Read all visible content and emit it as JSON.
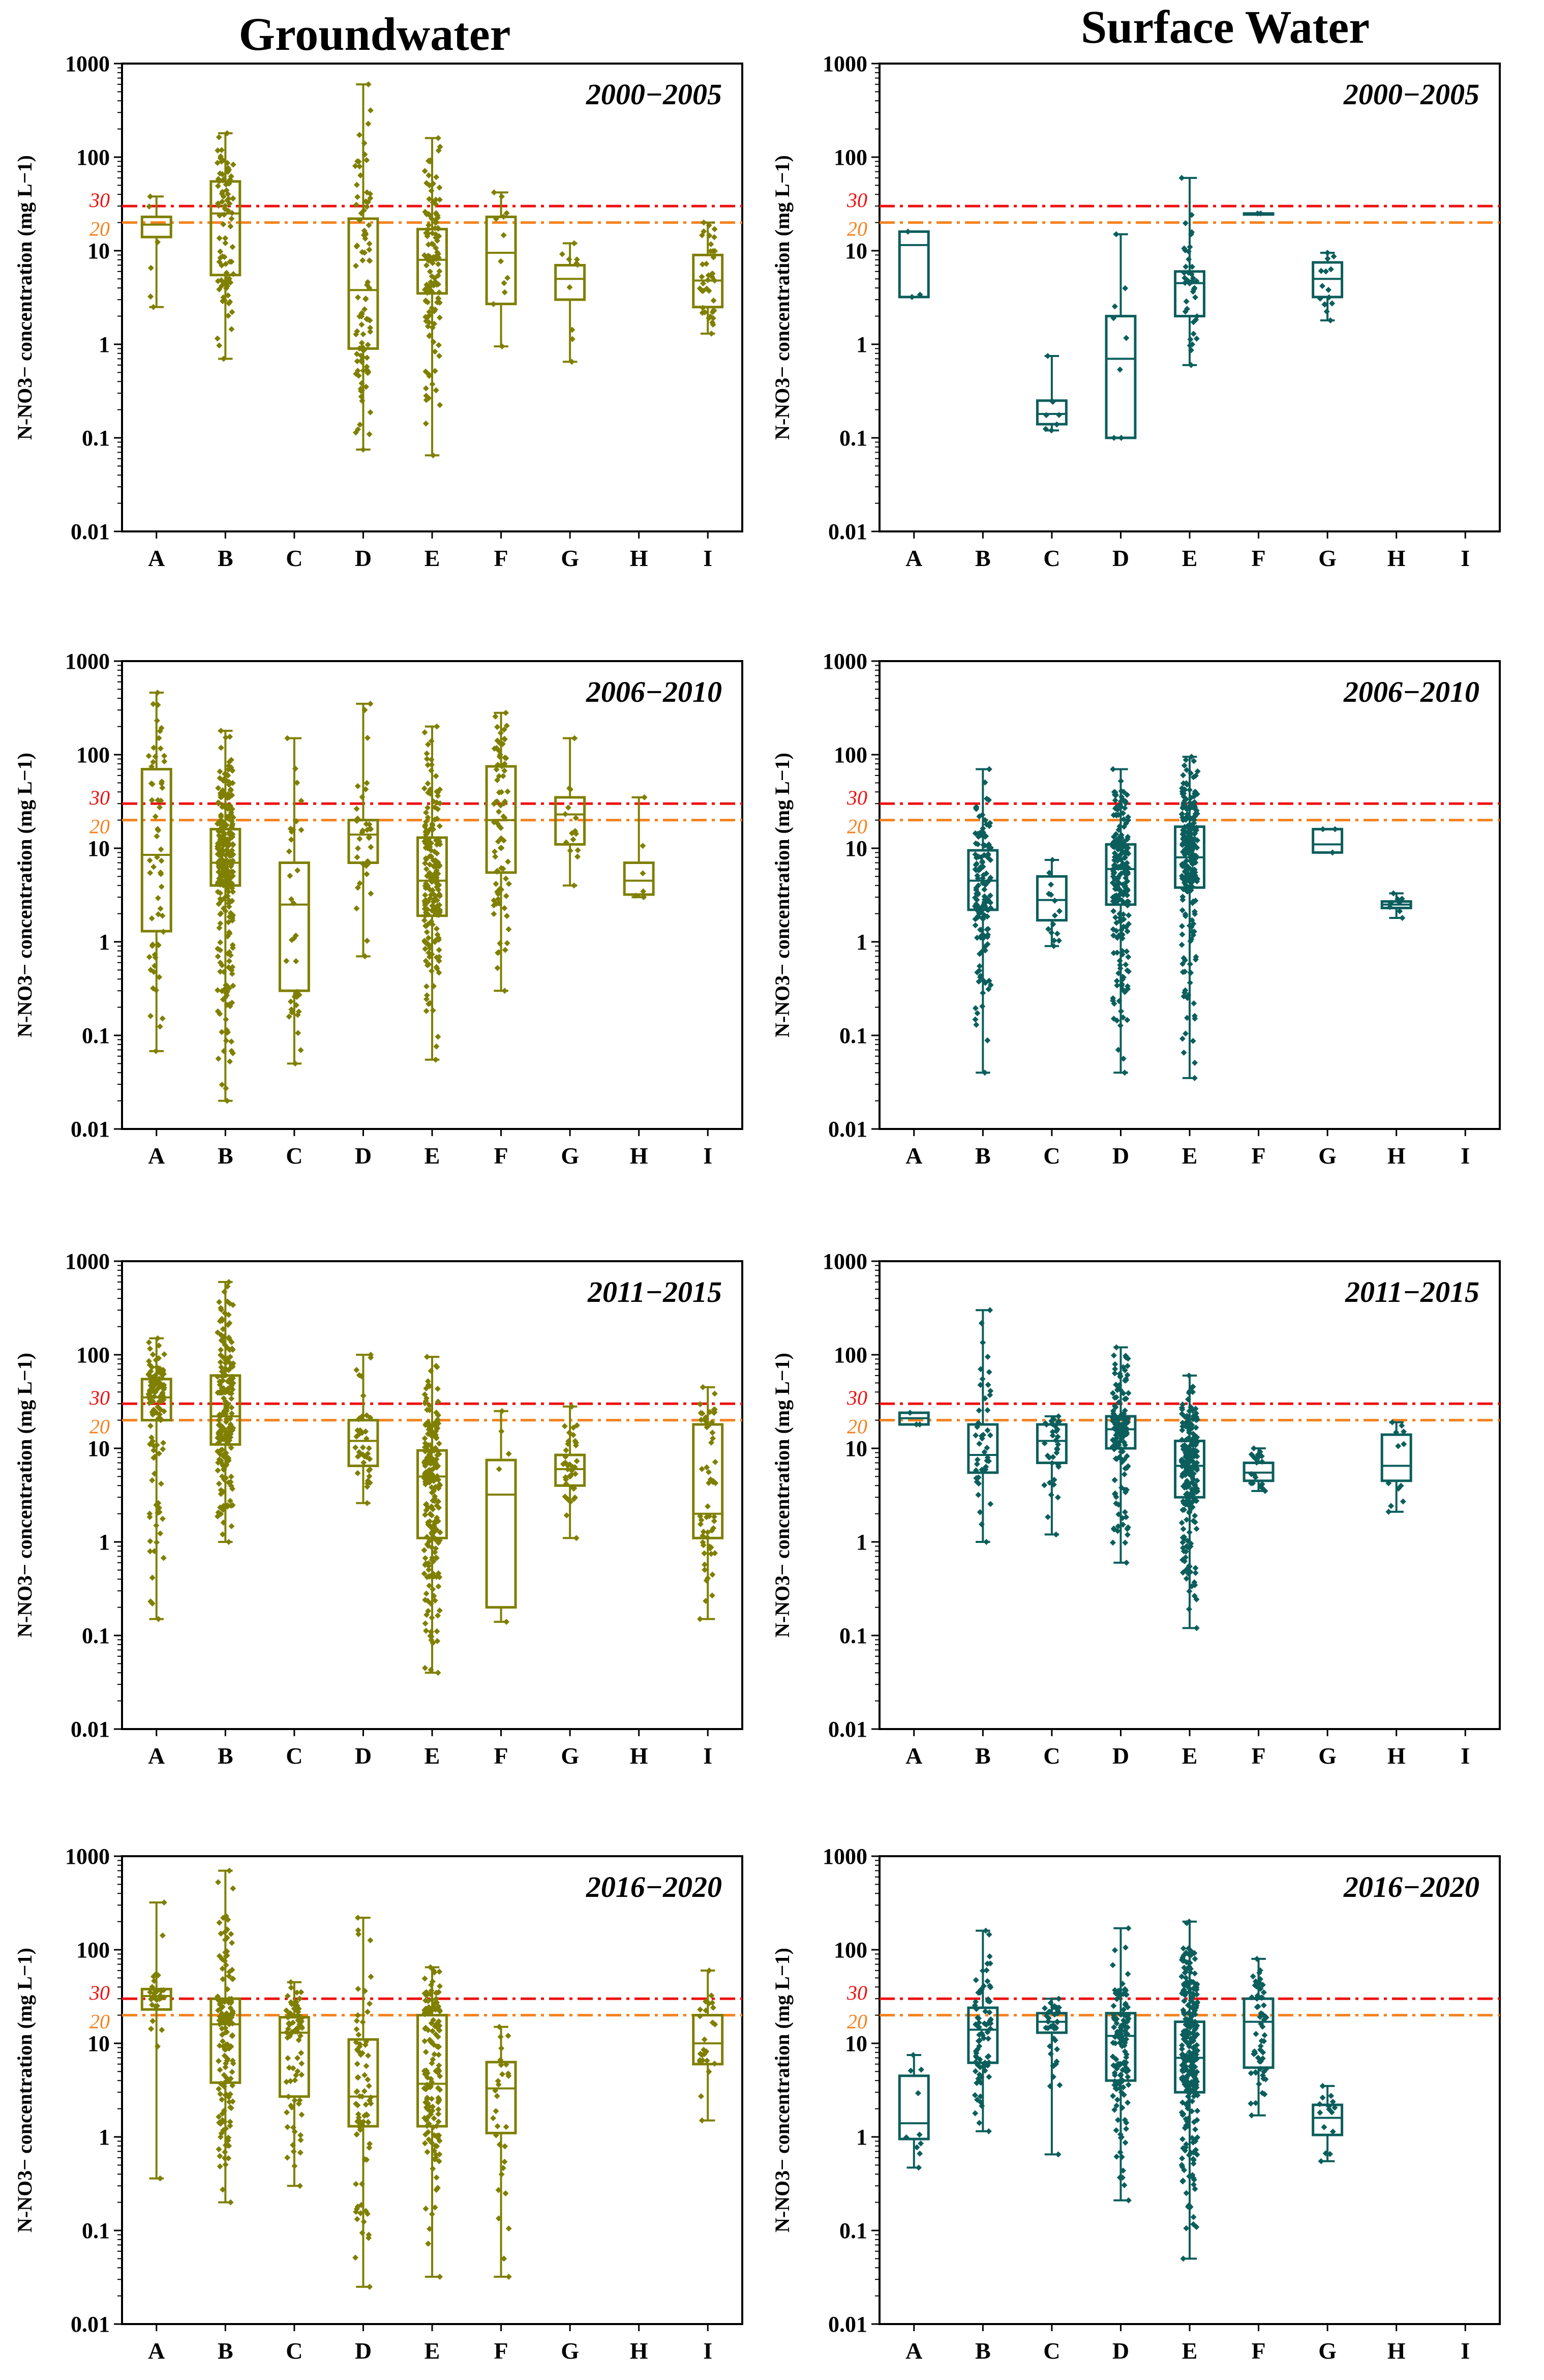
{
  "figure": {
    "column_titles": [
      "Groundwater",
      "Surface Water"
    ],
    "colors": {
      "groundwater": "#7F7F00",
      "surface": "#0B5E5C",
      "limit30": "#EE1111",
      "limit20": "#F5821F"
    }
  },
  "chart_data": [
    {
      "type": "box",
      "panel": "groundwater-2000-2005",
      "title": "2000−2005",
      "ylabel": "N-NO3− concentration (mg L−1)",
      "yscale": "log",
      "ylim": [
        0.01,
        1000
      ],
      "yticks": [
        "0.01",
        "0.1",
        "1",
        "10",
        "100",
        "1000"
      ],
      "categories": [
        "A",
        "B",
        "C",
        "D",
        "E",
        "F",
        "G",
        "H",
        "I"
      ],
      "reference_lines": [
        {
          "value": 30,
          "label": "30"
        },
        {
          "value": 20,
          "label": "20"
        }
      ],
      "boxes": [
        {
          "cat": "A",
          "min": 2.5,
          "q1": 14,
          "median": 19,
          "q3": 23,
          "max": 38,
          "n": 6
        },
        {
          "cat": "B",
          "min": 0.7,
          "q1": 5.5,
          "median": 25,
          "q3": 55,
          "max": 180,
          "n": 90
        },
        {
          "cat": "D",
          "min": 0.075,
          "q1": 0.9,
          "median": 3.8,
          "q3": 22,
          "max": 600,
          "n": 95
        },
        {
          "cat": "E",
          "min": 0.065,
          "q1": 3.5,
          "median": 8,
          "q3": 17,
          "max": 160,
          "n": 130
        },
        {
          "cat": "F",
          "min": 0.95,
          "q1": 2.7,
          "median": 9.5,
          "q3": 23,
          "max": 42,
          "n": 12
        },
        {
          "cat": "G",
          "min": 0.65,
          "q1": 3.0,
          "median": 5.0,
          "q3": 7.0,
          "max": 12,
          "n": 10
        },
        {
          "cat": "I",
          "min": 1.3,
          "q1": 2.5,
          "median": 4.8,
          "q3": 9,
          "max": 20,
          "n": 40
        }
      ]
    },
    {
      "type": "box",
      "panel": "surface-2000-2005",
      "title": "2000−2005",
      "ylabel": "N-NO3− concentration (mg L−1)",
      "yscale": "log",
      "ylim": [
        0.01,
        1000
      ],
      "yticks": [
        "0.01",
        "0.1",
        "1",
        "10",
        "100",
        "1000"
      ],
      "categories": [
        "A",
        "B",
        "C",
        "D",
        "E",
        "F",
        "G",
        "H",
        "I"
      ],
      "reference_lines": [
        {
          "value": 30,
          "label": "30"
        },
        {
          "value": 20,
          "label": "20"
        }
      ],
      "boxes": [
        {
          "cat": "A",
          "min": 3.2,
          "q1": 3.2,
          "median": 11.5,
          "q3": 16,
          "max": 16,
          "n": 3
        },
        {
          "cat": "C",
          "min": 0.12,
          "q1": 0.14,
          "median": 0.18,
          "q3": 0.25,
          "max": 0.75,
          "n": 7
        },
        {
          "cat": "D",
          "min": 0.1,
          "q1": 0.1,
          "median": 0.7,
          "q3": 2.0,
          "max": 15,
          "n": 8
        },
        {
          "cat": "E",
          "min": 0.6,
          "q1": 2.0,
          "median": 4.5,
          "q3": 6.0,
          "max": 60,
          "n": 40
        },
        {
          "cat": "F",
          "min": 25,
          "q1": 25,
          "median": 25,
          "q3": 25,
          "max": 25,
          "n": 2
        },
        {
          "cat": "G",
          "min": 1.8,
          "q1": 3.2,
          "median": 5.0,
          "q3": 7.5,
          "max": 9.5,
          "n": 15
        }
      ]
    },
    {
      "type": "box",
      "panel": "groundwater-2006-2010",
      "title": "2006−2010",
      "ylabel": "N-NO3− concentration (mg L−1)",
      "yscale": "log",
      "ylim": [
        0.01,
        1000
      ],
      "yticks": [
        "0.01",
        "0.1",
        "1",
        "10",
        "100",
        "1000"
      ],
      "categories": [
        "A",
        "B",
        "C",
        "D",
        "E",
        "F",
        "G",
        "H",
        "I"
      ],
      "reference_lines": [
        {
          "value": 30,
          "label": "30"
        },
        {
          "value": 20,
          "label": "20"
        }
      ],
      "boxes": [
        {
          "cat": "A",
          "min": 0.068,
          "q1": 1.3,
          "median": 8.5,
          "q3": 70,
          "max": 460,
          "n": 60
        },
        {
          "cat": "B",
          "min": 0.02,
          "q1": 4.0,
          "median": 7.0,
          "q3": 16,
          "max": 180,
          "n": 300
        },
        {
          "cat": "C",
          "min": 0.05,
          "q1": 0.3,
          "median": 2.5,
          "q3": 7.0,
          "max": 150,
          "n": 35
        },
        {
          "cat": "D",
          "min": 0.7,
          "q1": 7.0,
          "median": 14,
          "q3": 20,
          "max": 350,
          "n": 35
        },
        {
          "cat": "E",
          "min": 0.055,
          "q1": 1.9,
          "median": 4.5,
          "q3": 13,
          "max": 200,
          "n": 200
        },
        {
          "cat": "F",
          "min": 0.3,
          "q1": 5.5,
          "median": 20,
          "q3": 75,
          "max": 280,
          "n": 80
        },
        {
          "cat": "G",
          "min": 4.0,
          "q1": 11,
          "median": 23,
          "q3": 35,
          "max": 150,
          "n": 15
        },
        {
          "cat": "H",
          "min": 3.0,
          "q1": 3.2,
          "median": 4.5,
          "q3": 7.0,
          "max": 35,
          "n": 6
        }
      ]
    },
    {
      "type": "box",
      "panel": "surface-2006-2010",
      "title": "2006−2010",
      "ylabel": "N-NO3− concentration (mg L−1)",
      "yscale": "log",
      "ylim": [
        0.01,
        1000
      ],
      "yticks": [
        "0.01",
        "0.1",
        "1",
        "10",
        "100",
        "1000"
      ],
      "categories": [
        "A",
        "B",
        "C",
        "D",
        "E",
        "F",
        "G",
        "H",
        "I"
      ],
      "reference_lines": [
        {
          "value": 30,
          "label": "30"
        },
        {
          "value": 20,
          "label": "20"
        }
      ],
      "boxes": [
        {
          "cat": "B",
          "min": 0.04,
          "q1": 2.2,
          "median": 4.5,
          "q3": 9.5,
          "max": 70,
          "n": 150
        },
        {
          "cat": "C",
          "min": 0.9,
          "q1": 1.7,
          "median": 2.8,
          "q3": 5.0,
          "max": 7.5,
          "n": 15
        },
        {
          "cat": "D",
          "min": 0.04,
          "q1": 2.5,
          "median": 6.0,
          "q3": 11,
          "max": 70,
          "n": 220
        },
        {
          "cat": "E",
          "min": 0.035,
          "q1": 3.8,
          "median": 8.0,
          "q3": 17,
          "max": 95,
          "n": 250
        },
        {
          "cat": "G",
          "min": 9.0,
          "q1": 9.0,
          "median": 11,
          "q3": 16,
          "max": 16,
          "n": 3
        },
        {
          "cat": "H",
          "min": 1.8,
          "q1": 2.3,
          "median": 2.5,
          "q3": 2.7,
          "max": 3.3,
          "n": 8
        }
      ]
    },
    {
      "type": "box",
      "panel": "groundwater-2011-2015",
      "title": "2011−2015",
      "ylabel": "N-NO3− concentration (mg L−1)",
      "yscale": "log",
      "ylim": [
        0.01,
        1000
      ],
      "yticks": [
        "0.01",
        "0.1",
        "1",
        "10",
        "100",
        "1000"
      ],
      "categories": [
        "A",
        "B",
        "C",
        "D",
        "E",
        "F",
        "G",
        "H",
        "I"
      ],
      "reference_lines": [
        {
          "value": 30,
          "label": "30"
        },
        {
          "value": 20,
          "label": "20"
        }
      ],
      "boxes": [
        {
          "cat": "A",
          "min": 0.15,
          "q1": 20,
          "median": 35,
          "q3": 55,
          "max": 150,
          "n": 120
        },
        {
          "cat": "B",
          "min": 1.0,
          "q1": 11,
          "median": 22,
          "q3": 60,
          "max": 600,
          "n": 200
        },
        {
          "cat": "D",
          "min": 2.6,
          "q1": 6.5,
          "median": 12,
          "q3": 20,
          "max": 100,
          "n": 40
        },
        {
          "cat": "E",
          "min": 0.04,
          "q1": 1.1,
          "median": 5.0,
          "q3": 9.5,
          "max": 95,
          "n": 220
        },
        {
          "cat": "F",
          "min": 0.14,
          "q1": 0.2,
          "median": 3.2,
          "q3": 7.5,
          "max": 25,
          "n": 5
        },
        {
          "cat": "G",
          "min": 1.1,
          "q1": 4.0,
          "median": 6.0,
          "q3": 8.5,
          "max": 28,
          "n": 40
        },
        {
          "cat": "I",
          "min": 0.15,
          "q1": 1.1,
          "median": 2.0,
          "q3": 18,
          "max": 45,
          "n": 60
        }
      ]
    },
    {
      "type": "box",
      "panel": "surface-2011-2015",
      "title": "2011−2015",
      "ylabel": "N-NO3− concentration (mg L−1)",
      "yscale": "log",
      "ylim": [
        0.01,
        1000
      ],
      "yticks": [
        "0.01",
        "0.1",
        "1",
        "10",
        "100",
        "1000"
      ],
      "categories": [
        "A",
        "B",
        "C",
        "D",
        "E",
        "F",
        "G",
        "H",
        "I"
      ],
      "reference_lines": [
        {
          "value": 30,
          "label": "30"
        },
        {
          "value": 20,
          "label": "20"
        }
      ],
      "boxes": [
        {
          "cat": "A",
          "min": 18,
          "q1": 18,
          "median": 21,
          "q3": 24,
          "max": 24,
          "n": 3
        },
        {
          "cat": "B",
          "min": 1.0,
          "q1": 5.5,
          "median": 8.5,
          "q3": 18,
          "max": 300,
          "n": 45
        },
        {
          "cat": "C",
          "min": 1.2,
          "q1": 7.0,
          "median": 12,
          "q3": 18,
          "max": 22,
          "n": 35
        },
        {
          "cat": "D",
          "min": 0.6,
          "q1": 10,
          "median": 16,
          "q3": 22,
          "max": 120,
          "n": 150
        },
        {
          "cat": "E",
          "min": 0.12,
          "q1": 3.0,
          "median": 6.5,
          "q3": 12,
          "max": 60,
          "n": 220
        },
        {
          "cat": "F",
          "min": 3.5,
          "q1": 4.5,
          "median": 5.5,
          "q3": 7.0,
          "max": 10,
          "n": 20
        },
        {
          "cat": "H",
          "min": 2.1,
          "q1": 4.5,
          "median": 6.5,
          "q3": 14,
          "max": 19,
          "n": 12
        }
      ]
    },
    {
      "type": "box",
      "panel": "groundwater-2016-2020",
      "title": "2016−2020",
      "ylabel": "N-NO3− concentration (mg L−1)",
      "yscale": "log",
      "ylim": [
        0.01,
        1000
      ],
      "yticks": [
        "0.01",
        "0.1",
        "1",
        "10",
        "100",
        "1000"
      ],
      "categories": [
        "A",
        "B",
        "C",
        "D",
        "E",
        "F",
        "G",
        "H",
        "I"
      ],
      "reference_lines": [
        {
          "value": 30,
          "label": "30"
        },
        {
          "value": 20,
          "label": "20"
        }
      ],
      "boxes": [
        {
          "cat": "A",
          "min": 0.36,
          "q1": 23,
          "median": 32,
          "q3": 38,
          "max": 320,
          "n": 30
        },
        {
          "cat": "B",
          "min": 0.2,
          "q1": 3.8,
          "median": 16,
          "q3": 30,
          "max": 700,
          "n": 150
        },
        {
          "cat": "C",
          "min": 0.3,
          "q1": 2.7,
          "median": 13,
          "q3": 19,
          "max": 45,
          "n": 80
        },
        {
          "cat": "D",
          "min": 0.025,
          "q1": 1.3,
          "median": 2.7,
          "q3": 11,
          "max": 220,
          "n": 80
        },
        {
          "cat": "E",
          "min": 0.032,
          "q1": 1.3,
          "median": 3.7,
          "q3": 20,
          "max": 65,
          "n": 150
        },
        {
          "cat": "F",
          "min": 0.032,
          "q1": 1.1,
          "median": 3.3,
          "q3": 6.3,
          "max": 15,
          "n": 30
        },
        {
          "cat": "I",
          "min": 1.5,
          "q1": 6.0,
          "median": 10,
          "q3": 20,
          "max": 60,
          "n": 25
        }
      ]
    },
    {
      "type": "box",
      "panel": "surface-2016-2020",
      "title": "2016−2020",
      "ylabel": "N-NO3− concentration (mg L−1)",
      "yscale": "log",
      "ylim": [
        0.01,
        1000
      ],
      "yticks": [
        "0.01",
        "0.1",
        "1",
        "10",
        "100",
        "1000"
      ],
      "categories": [
        "A",
        "B",
        "C",
        "D",
        "E",
        "F",
        "G",
        "H",
        "I"
      ],
      "reference_lines": [
        {
          "value": 30,
          "label": "30"
        },
        {
          "value": 20,
          "label": "20"
        }
      ],
      "boxes": [
        {
          "cat": "A",
          "min": 0.47,
          "q1": 0.95,
          "median": 1.4,
          "q3": 4.5,
          "max": 7.5,
          "n": 10
        },
        {
          "cat": "B",
          "min": 1.15,
          "q1": 6.2,
          "median": 14,
          "q3": 24,
          "max": 160,
          "n": 80
        },
        {
          "cat": "C",
          "min": 0.65,
          "q1": 13,
          "median": 17,
          "q3": 21,
          "max": 30,
          "n": 40
        },
        {
          "cat": "D",
          "min": 0.21,
          "q1": 4.0,
          "median": 12,
          "q3": 21,
          "max": 170,
          "n": 130
        },
        {
          "cat": "E",
          "min": 0.05,
          "q1": 3.0,
          "median": 7.0,
          "q3": 17,
          "max": 200,
          "n": 280
        },
        {
          "cat": "F",
          "min": 1.7,
          "q1": 5.5,
          "median": 17,
          "q3": 30,
          "max": 80,
          "n": 60
        },
        {
          "cat": "G",
          "min": 0.55,
          "q1": 1.05,
          "median": 1.6,
          "q3": 2.2,
          "max": 3.5,
          "n": 15
        }
      ]
    }
  ]
}
